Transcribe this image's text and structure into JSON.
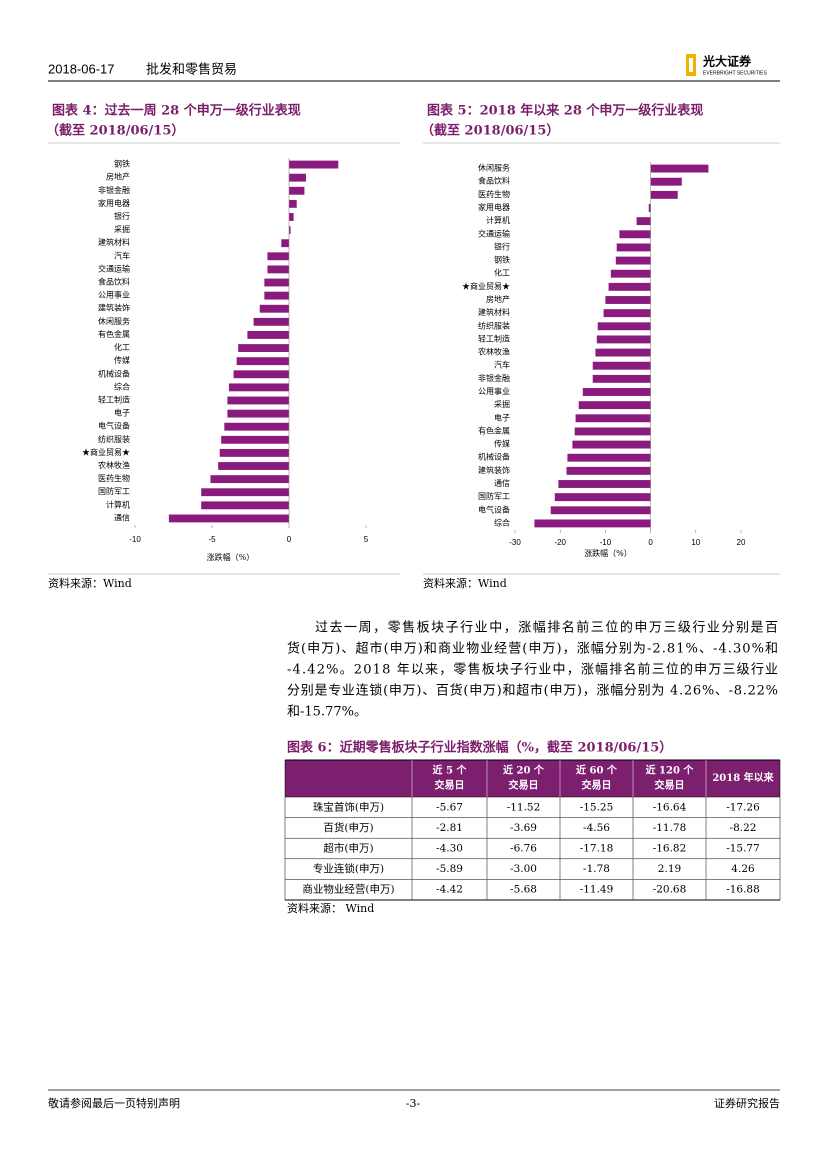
{
  "header": {
    "date": "2018-06-17",
    "section": "批发和零售贸易",
    "logo_name": "光大证券",
    "logo_english": "EVERBRIGHT SECURITIES"
  },
  "chart_data": [
    {
      "type": "hbar",
      "title": "图表 4：过去一周 28 个申万一级行业表现",
      "subtitle": "（截至 2018/06/15）",
      "categories": [
        "钢铁",
        "房地产",
        "非银金融",
        "家用电器",
        "银行",
        "采掘",
        "建筑材料",
        "汽车",
        "交通运输",
        "食品饮料",
        "公用事业",
        "建筑装饰",
        "休闲服务",
        "有色金属",
        "化工",
        "传媒",
        "机械设备",
        "综合",
        "轻工制造",
        "电子",
        "电气设备",
        "纺织服装",
        "★商业贸易★",
        "农林牧渔",
        "医药生物",
        "国防军工",
        "计算机",
        "通信"
      ],
      "values": [
        3.2,
        1.1,
        1.0,
        0.5,
        0.3,
        0.1,
        -0.5,
        -1.4,
        -1.4,
        -1.6,
        -1.6,
        -1.9,
        -2.3,
        -2.7,
        -3.3,
        -3.4,
        -3.6,
        -3.9,
        -4.0,
        -4.0,
        -4.2,
        -4.4,
        -4.5,
        -4.6,
        -5.1,
        -5.7,
        -5.7,
        -7.8
      ],
      "color": "#8b1a7e",
      "xlim": [
        -10,
        5
      ],
      "xticks": [
        -10,
        -5,
        0,
        5
      ],
      "xlabel": "涨跌幅（%）"
    },
    {
      "type": "hbar",
      "title": "图表 5：2018 年以来 28 个申万一级行业表现",
      "subtitle": "（截至 2018/06/15）",
      "categories": [
        "休闲服务",
        "食品饮料",
        "医药生物",
        "家用电器",
        "计算机",
        "交通运输",
        "银行",
        "钢铁",
        "化工",
        "★商业贸易★",
        "房地产",
        "建筑材料",
        "纺织服装",
        "轻工制造",
        "农林牧渔",
        "汽车",
        "非银金融",
        "公用事业",
        "采掘",
        "电子",
        "有色金属",
        "传媒",
        "机械设备",
        "建筑装饰",
        "通信",
        "国防军工",
        "电气设备",
        "综合"
      ],
      "values": [
        12.8,
        6.9,
        6.0,
        -0.4,
        -3.1,
        -6.9,
        -7.5,
        -7.7,
        -8.8,
        -9.3,
        -10.0,
        -10.4,
        -11.7,
        -11.9,
        -12.2,
        -12.8,
        -12.8,
        -15.0,
        -15.9,
        -16.6,
        -16.8,
        -17.3,
        -18.4,
        -18.6,
        -20.4,
        -21.2,
        -22.1,
        -25.7
      ],
      "color": "#8b1a7e",
      "xlim": [
        -30,
        20
      ],
      "xticks": [
        -30,
        -20,
        -10,
        0,
        10,
        20
      ],
      "xlabel": "涨跌幅（%）"
    }
  ],
  "sources": [
    "资料来源：Wind",
    "资料来源：Wind"
  ],
  "paragraph": [
    "过去一周，零售板块子行业中，涨幅排名前三位的申万三级行业分别是百",
    "货(申万)、超市(申万)和商业物业经营(申万)，涨幅分别为-2.81%、-4.30%和",
    "-4.42%。2018 年以来，零售板块子行业中，涨幅排名前三位的申万三级行业",
    "分别是专业连锁(申万)、百货(申万)和超市(申万)，涨幅分别为 4.26%、-8.22%",
    "和-15.77%。"
  ],
  "table": {
    "title": "图表 6：近期零售板块子行业指数涨幅（%，截至 2018/06/15）",
    "header": [
      [
        "近 5 个",
        "交易日"
      ],
      [
        "近 20 个",
        "交易日"
      ],
      [
        "近 60 个",
        "交易日"
      ],
      [
        "近 120 个",
        "交易日"
      ],
      [
        "2018 年以来"
      ]
    ],
    "rows": [
      {
        "label": "珠宝首饰(申万)",
        "values": [
          "-5.67",
          "-11.52",
          "-15.25",
          "-16.64",
          "-17.26"
        ]
      },
      {
        "label": "百货(申万)",
        "values": [
          "-2.81",
          "-3.69",
          "-4.56",
          "-11.78",
          "-8.22"
        ]
      },
      {
        "label": "超市(申万)",
        "values": [
          "-4.30",
          "-6.76",
          "-17.18",
          "-16.82",
          "-15.77"
        ]
      },
      {
        "label": "专业连锁(申万)",
        "values": [
          "-5.89",
          "-3.00",
          "-1.78",
          "2.19",
          "4.26"
        ]
      },
      {
        "label": "商业物业经营(申万)",
        "values": [
          "-4.42",
          "-5.68",
          "-11.49",
          "-20.68",
          "-16.88"
        ]
      }
    ],
    "source": "资料来源：  Wind"
  },
  "footer": {
    "left": "敬请参阅最后一页特别声明",
    "page": "-3-",
    "right": "证券研究报告"
  }
}
